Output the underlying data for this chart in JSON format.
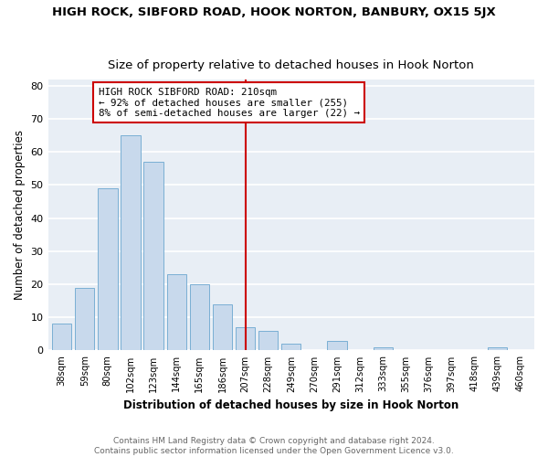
{
  "title": "HIGH ROCK, SIBFORD ROAD, HOOK NORTON, BANBURY, OX15 5JX",
  "subtitle": "Size of property relative to detached houses in Hook Norton",
  "xlabel": "Distribution of detached houses by size in Hook Norton",
  "ylabel": "Number of detached properties",
  "bar_labels": [
    "38sqm",
    "59sqm",
    "80sqm",
    "102sqm",
    "123sqm",
    "144sqm",
    "165sqm",
    "186sqm",
    "207sqm",
    "228sqm",
    "249sqm",
    "270sqm",
    "291sqm",
    "312sqm",
    "333sqm",
    "355sqm",
    "376sqm",
    "397sqm",
    "418sqm",
    "439sqm",
    "460sqm"
  ],
  "bar_values": [
    8,
    19,
    49,
    65,
    57,
    23,
    20,
    14,
    7,
    6,
    2,
    0,
    3,
    0,
    1,
    0,
    0,
    0,
    0,
    1,
    0
  ],
  "bar_color": "#c8d9ec",
  "bar_edge_color": "#7aafd4",
  "vline_x": 8,
  "vline_color": "#cc0000",
  "annotation_text": "HIGH ROCK SIBFORD ROAD: 210sqm\n← 92% of detached houses are smaller (255)\n8% of semi-detached houses are larger (22) →",
  "ylim": [
    0,
    82
  ],
  "yticks": [
    0,
    10,
    20,
    30,
    40,
    50,
    60,
    70,
    80
  ],
  "footer": "Contains HM Land Registry data © Crown copyright and database right 2024.\nContains public sector information licensed under the Open Government Licence v3.0.",
  "bg_color": "#e8eef5",
  "plot_bg_color": "#e8eef5",
  "grid_color": "#ffffff",
  "title_fontsize": 9.5,
  "subtitle_fontsize": 9.5
}
